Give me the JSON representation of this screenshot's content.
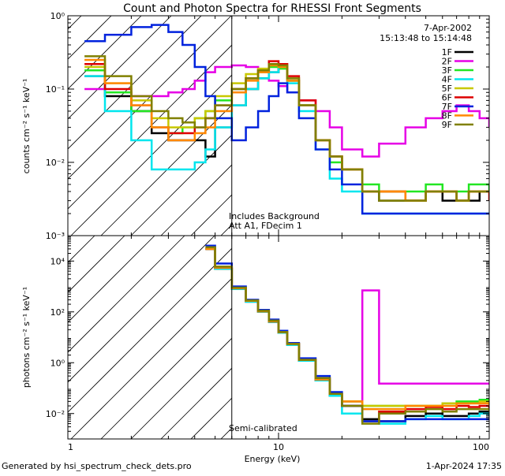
{
  "figure": {
    "title": "Count and Photon Spectra for RHESSI Front Segments",
    "footer_left": "Generated by hsi_spectrum_check_dets.pro",
    "footer_right": "1-Apr-2024 17:35",
    "xlabel": "Energy (keV)"
  },
  "top_panel": {
    "date": "7-Apr-2002",
    "time_range": "15:13:48 to 15:14:48",
    "annotation_1": "Includes Background",
    "annotation_2": "Att A1, FDecim 1",
    "ylabel": "counts cm⁻² s⁻¹ keV⁻¹"
  },
  "bottom_panel": {
    "annotation": "Semi-calibrated",
    "ylabel": "photons cm⁻² s⁻¹ keV⁻¹"
  },
  "legend": [
    {
      "label": "1F",
      "color": "#000000"
    },
    {
      "label": "2F",
      "color": "#e600e6"
    },
    {
      "label": "3F",
      "color": "#22e622"
    },
    {
      "label": "4F",
      "color": "#00e6ee"
    },
    {
      "label": "5F",
      "color": "#c8c800"
    },
    {
      "label": "6F",
      "color": "#dd0000"
    },
    {
      "label": "7F",
      "color": "#0022dd"
    },
    {
      "label": "8F",
      "color": "#ff8800"
    },
    {
      "label": "9F",
      "color": "#808000"
    }
  ],
  "chart_data": [
    {
      "type": "line",
      "panel": "counts",
      "xscale": "log",
      "yscale": "log",
      "xlim": [
        1,
        100
      ],
      "ylim": [
        0.001,
        1
      ],
      "ytick_labels": [
        "10⁻³",
        "10⁻²",
        "10⁻¹",
        "10⁰"
      ],
      "ytick_values": [
        0.001,
        0.01,
        0.1,
        1
      ],
      "vline_keV": 6,
      "x": [
        1.2,
        1.5,
        2.0,
        2.5,
        3.0,
        3.5,
        4.0,
        4.5,
        5.0,
        6.0,
        7.0,
        8.0,
        9.0,
        10.0,
        11.0,
        12.5,
        15.0,
        17.5,
        20.0,
        25.0,
        30.0,
        40.0,
        50.0,
        60.0,
        70.0,
        80.0,
        90.0,
        100.0
      ],
      "series": [
        {
          "name": "1F",
          "values": [
            0.15,
            0.08,
            0.05,
            0.025,
            0.02,
            0.02,
            0.02,
            0.012,
            0.03,
            0.06,
            0.1,
            0.14,
            0.17,
            0.2,
            0.13,
            0.06,
            0.02,
            0.012,
            0.008,
            0.004,
            0.003,
            0.003,
            0.004,
            0.003,
            0.003,
            0.003,
            0.004,
            0.004
          ]
        },
        {
          "name": "2F",
          "values": [
            0.1,
            0.09,
            0.08,
            0.08,
            0.09,
            0.1,
            0.13,
            0.17,
            0.2,
            0.21,
            0.2,
            0.17,
            0.13,
            0.11,
            0.09,
            0.07,
            0.05,
            0.03,
            0.015,
            0.012,
            0.018,
            0.03,
            0.04,
            0.05,
            0.06,
            0.05,
            0.04,
            0.03
          ]
        },
        {
          "name": "3F",
          "values": [
            0.18,
            0.09,
            0.05,
            0.03,
            0.025,
            0.03,
            0.04,
            0.05,
            0.07,
            0.1,
            0.14,
            0.17,
            0.2,
            0.19,
            0.13,
            0.06,
            0.02,
            0.01,
            0.008,
            0.005,
            0.004,
            0.004,
            0.005,
            0.004,
            0.004,
            0.005,
            0.005,
            0.004
          ]
        },
        {
          "name": "4F",
          "values": [
            0.15,
            0.05,
            0.02,
            0.008,
            0.008,
            0.008,
            0.01,
            0.015,
            0.03,
            0.06,
            0.1,
            0.14,
            0.17,
            0.2,
            0.12,
            0.05,
            0.015,
            0.006,
            0.004,
            0.002,
            0.002,
            0.002,
            0.002,
            0.002,
            0.002,
            0.002,
            0.002,
            0.002
          ]
        },
        {
          "name": "5F",
          "values": [
            0.2,
            0.12,
            0.07,
            0.04,
            0.03,
            0.03,
            0.04,
            0.05,
            0.08,
            0.12,
            0.16,
            0.19,
            0.22,
            0.2,
            0.14,
            0.06,
            0.02,
            0.012,
            0.008,
            0.004,
            0.004,
            0.003,
            0.004,
            0.004,
            0.003,
            0.004,
            0.004,
            0.004
          ]
        },
        {
          "name": "6F",
          "values": [
            0.22,
            0.1,
            0.06,
            0.03,
            0.025,
            0.025,
            0.03,
            0.04,
            0.06,
            0.1,
            0.14,
            0.18,
            0.24,
            0.22,
            0.15,
            0.07,
            0.02,
            0.012,
            0.008,
            0.004,
            0.004,
            0.003,
            0.004,
            0.004,
            0.003,
            0.004,
            0.004,
            0.003
          ]
        },
        {
          "name": "7F",
          "values": [
            0.45,
            0.55,
            0.7,
            0.75,
            0.6,
            0.4,
            0.2,
            0.08,
            0.04,
            0.02,
            0.03,
            0.05,
            0.08,
            0.12,
            0.09,
            0.04,
            0.015,
            0.008,
            0.005,
            0.002,
            0.002,
            0.002,
            0.002,
            0.002,
            0.002,
            0.002,
            0.002,
            0.002
          ]
        },
        {
          "name": "8F",
          "values": [
            0.25,
            0.12,
            0.06,
            0.03,
            0.02,
            0.02,
            0.025,
            0.03,
            0.05,
            0.09,
            0.13,
            0.17,
            0.21,
            0.2,
            0.13,
            0.06,
            0.02,
            0.012,
            0.008,
            0.004,
            0.004,
            0.003,
            0.004,
            0.004,
            0.003,
            0.004,
            0.004,
            0.004
          ]
        },
        {
          "name": "9F",
          "values": [
            0.28,
            0.15,
            0.08,
            0.05,
            0.04,
            0.035,
            0.03,
            0.04,
            0.06,
            0.1,
            0.14,
            0.18,
            0.22,
            0.21,
            0.14,
            0.06,
            0.02,
            0.012,
            0.008,
            0.004,
            0.003,
            0.003,
            0.004,
            0.004,
            0.003,
            0.004,
            0.004,
            0.004
          ]
        }
      ]
    },
    {
      "type": "line",
      "panel": "photons",
      "xscale": "log",
      "yscale": "log",
      "xlim": [
        1,
        100
      ],
      "ylim": [
        0.001,
        100000
      ],
      "ytick_labels": [
        "10⁻²",
        "10⁰",
        "10²",
        "10⁴"
      ],
      "ytick_values": [
        0.01,
        1,
        100,
        10000
      ],
      "vline_keV": 6,
      "x": [
        4.5,
        5.0,
        6.0,
        7.0,
        8.0,
        9.0,
        10.0,
        11.0,
        12.5,
        15.0,
        17.5,
        20.0,
        25.0,
        30.0,
        40.0,
        50.0,
        60.0,
        70.0,
        80.0,
        90.0,
        100.0
      ],
      "series": [
        {
          "name": "1F",
          "values": [
            30000,
            5000,
            800,
            250,
            100,
            40,
            15,
            5,
            1.2,
            0.2,
            0.05,
            0.02,
            0.006,
            0.005,
            0.008,
            0.01,
            0.008,
            0.008,
            0.01,
            0.012,
            0.01
          ]
        },
        {
          "name": "2F",
          "values": [
            30000,
            5000,
            900,
            280,
            110,
            45,
            16,
            5.5,
            1.3,
            0.25,
            0.06,
            0.03,
            700,
            0.15,
            0.15,
            0.15,
            0.15,
            0.15,
            0.15,
            0.15,
            0.15
          ]
        },
        {
          "name": "3F",
          "values": [
            30000,
            5000,
            850,
            270,
            105,
            42,
            16,
            5.5,
            1.3,
            0.22,
            0.06,
            0.03,
            0.02,
            0.02,
            0.02,
            0.02,
            0.025,
            0.03,
            0.03,
            0.035,
            0.03
          ]
        },
        {
          "name": "4F",
          "values": [
            30000,
            5000,
            800,
            250,
            100,
            40,
            15,
            5,
            1.2,
            0.2,
            0.05,
            0.01,
            0.005,
            0.004,
            0.006,
            0.008,
            0.006,
            0.006,
            0.008,
            0.01,
            0.008
          ]
        },
        {
          "name": "5F",
          "values": [
            30000,
            6000,
            900,
            280,
            110,
            45,
            16,
            5.5,
            1.3,
            0.25,
            0.06,
            0.03,
            0.02,
            0.02,
            0.02,
            0.02,
            0.025,
            0.025,
            0.025,
            0.03,
            0.025
          ]
        },
        {
          "name": "6F",
          "values": [
            30000,
            5500,
            850,
            270,
            105,
            42,
            16,
            5.5,
            1.3,
            0.22,
            0.06,
            0.02,
            0.005,
            0.012,
            0.015,
            0.018,
            0.015,
            0.02,
            0.018,
            0.02,
            0.015
          ]
        },
        {
          "name": "7F",
          "values": [
            40000,
            8000,
            1000,
            300,
            120,
            50,
            18,
            6,
            1.5,
            0.3,
            0.07,
            0.02,
            0.005,
            0.005,
            0.006,
            0.006,
            0.006,
            0.006,
            0.006,
            0.006,
            0.006
          ]
        },
        {
          "name": "8F",
          "values": [
            30000,
            5500,
            850,
            270,
            105,
            42,
            16,
            5.5,
            1.3,
            0.22,
            0.06,
            0.03,
            0.015,
            0.015,
            0.02,
            0.02,
            0.02,
            0.025,
            0.025,
            0.025,
            0.02
          ]
        },
        {
          "name": "9F",
          "values": [
            35000,
            6000,
            900,
            280,
            110,
            45,
            16,
            5.5,
            1.3,
            0.25,
            0.06,
            0.02,
            0.004,
            0.01,
            0.012,
            0.015,
            0.012,
            0.015,
            0.015,
            0.015,
            0.012
          ]
        }
      ]
    }
  ]
}
